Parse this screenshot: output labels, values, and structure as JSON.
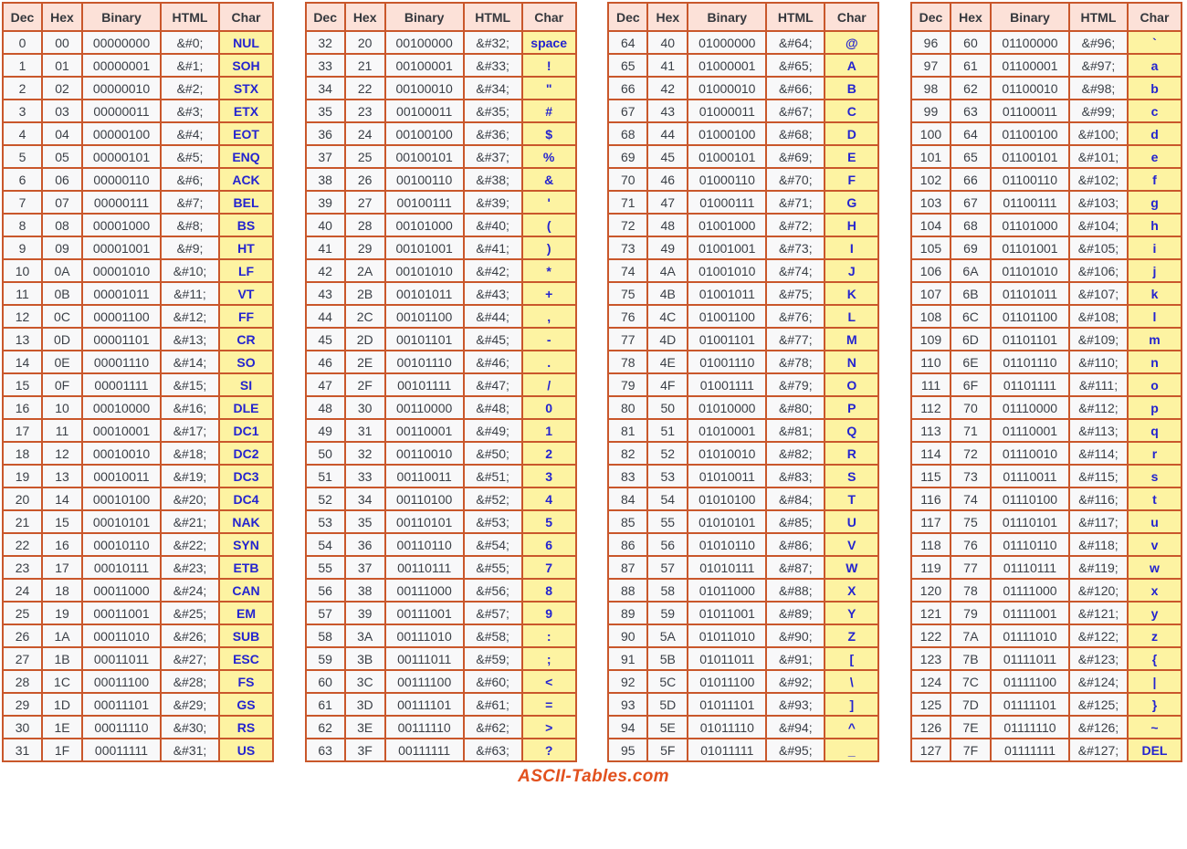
{
  "theme": {
    "border_color": "#c9572b",
    "header_bg": "#fce1d8",
    "cell_bg": "#f8f8f9",
    "char_bg": "#fdf3a2",
    "char_text": "#2424cf",
    "text_color": "#3a3f46",
    "footer_color": "#e2511e"
  },
  "footer": {
    "label": "ASCII-Tables.com"
  },
  "columns": [
    "Dec",
    "Hex",
    "Binary",
    "HTML",
    "Char"
  ],
  "tables": [
    {
      "rows": [
        [
          "0",
          "00",
          "00000000",
          "&#0;",
          "NUL"
        ],
        [
          "1",
          "01",
          "00000001",
          "&#1;",
          "SOH"
        ],
        [
          "2",
          "02",
          "00000010",
          "&#2;",
          "STX"
        ],
        [
          "3",
          "03",
          "00000011",
          "&#3;",
          "ETX"
        ],
        [
          "4",
          "04",
          "00000100",
          "&#4;",
          "EOT"
        ],
        [
          "5",
          "05",
          "00000101",
          "&#5;",
          "ENQ"
        ],
        [
          "6",
          "06",
          "00000110",
          "&#6;",
          "ACK"
        ],
        [
          "7",
          "07",
          "00000111",
          "&#7;",
          "BEL"
        ],
        [
          "8",
          "08",
          "00001000",
          "&#8;",
          "BS"
        ],
        [
          "9",
          "09",
          "00001001",
          "&#9;",
          "HT"
        ],
        [
          "10",
          "0A",
          "00001010",
          "&#10;",
          "LF"
        ],
        [
          "11",
          "0B",
          "00001011",
          "&#11;",
          "VT"
        ],
        [
          "12",
          "0C",
          "00001100",
          "&#12;",
          "FF"
        ],
        [
          "13",
          "0D",
          "00001101",
          "&#13;",
          "CR"
        ],
        [
          "14",
          "0E",
          "00001110",
          "&#14;",
          "SO"
        ],
        [
          "15",
          "0F",
          "00001111",
          "&#15;",
          "SI"
        ],
        [
          "16",
          "10",
          "00010000",
          "&#16;",
          "DLE"
        ],
        [
          "17",
          "11",
          "00010001",
          "&#17;",
          "DC1"
        ],
        [
          "18",
          "12",
          "00010010",
          "&#18;",
          "DC2"
        ],
        [
          "19",
          "13",
          "00010011",
          "&#19;",
          "DC3"
        ],
        [
          "20",
          "14",
          "00010100",
          "&#20;",
          "DC4"
        ],
        [
          "21",
          "15",
          "00010101",
          "&#21;",
          "NAK"
        ],
        [
          "22",
          "16",
          "00010110",
          "&#22;",
          "SYN"
        ],
        [
          "23",
          "17",
          "00010111",
          "&#23;",
          "ETB"
        ],
        [
          "24",
          "18",
          "00011000",
          "&#24;",
          "CAN"
        ],
        [
          "25",
          "19",
          "00011001",
          "&#25;",
          "EM"
        ],
        [
          "26",
          "1A",
          "00011010",
          "&#26;",
          "SUB"
        ],
        [
          "27",
          "1B",
          "00011011",
          "&#27;",
          "ESC"
        ],
        [
          "28",
          "1C",
          "00011100",
          "&#28;",
          "FS"
        ],
        [
          "29",
          "1D",
          "00011101",
          "&#29;",
          "GS"
        ],
        [
          "30",
          "1E",
          "00011110",
          "&#30;",
          "RS"
        ],
        [
          "31",
          "1F",
          "00011111",
          "&#31;",
          "US"
        ]
      ]
    },
    {
      "rows": [
        [
          "32",
          "20",
          "00100000",
          "&#32;",
          "space"
        ],
        [
          "33",
          "21",
          "00100001",
          "&#33;",
          "!"
        ],
        [
          "34",
          "22",
          "00100010",
          "&#34;",
          "\""
        ],
        [
          "35",
          "23",
          "00100011",
          "&#35;",
          "#"
        ],
        [
          "36",
          "24",
          "00100100",
          "&#36;",
          "$"
        ],
        [
          "37",
          "25",
          "00100101",
          "&#37;",
          "%"
        ],
        [
          "38",
          "26",
          "00100110",
          "&#38;",
          "&"
        ],
        [
          "39",
          "27",
          "00100111",
          "&#39;",
          "'"
        ],
        [
          "40",
          "28",
          "00101000",
          "&#40;",
          "("
        ],
        [
          "41",
          "29",
          "00101001",
          "&#41;",
          ")"
        ],
        [
          "42",
          "2A",
          "00101010",
          "&#42;",
          "*"
        ],
        [
          "43",
          "2B",
          "00101011",
          "&#43;",
          "+"
        ],
        [
          "44",
          "2C",
          "00101100",
          "&#44;",
          ","
        ],
        [
          "45",
          "2D",
          "00101101",
          "&#45;",
          "-"
        ],
        [
          "46",
          "2E",
          "00101110",
          "&#46;",
          "."
        ],
        [
          "47",
          "2F",
          "00101111",
          "&#47;",
          "/"
        ],
        [
          "48",
          "30",
          "00110000",
          "&#48;",
          "0"
        ],
        [
          "49",
          "31",
          "00110001",
          "&#49;",
          "1"
        ],
        [
          "50",
          "32",
          "00110010",
          "&#50;",
          "2"
        ],
        [
          "51",
          "33",
          "00110011",
          "&#51;",
          "3"
        ],
        [
          "52",
          "34",
          "00110100",
          "&#52;",
          "4"
        ],
        [
          "53",
          "35",
          "00110101",
          "&#53;",
          "5"
        ],
        [
          "54",
          "36",
          "00110110",
          "&#54;",
          "6"
        ],
        [
          "55",
          "37",
          "00110111",
          "&#55;",
          "7"
        ],
        [
          "56",
          "38",
          "00111000",
          "&#56;",
          "8"
        ],
        [
          "57",
          "39",
          "00111001",
          "&#57;",
          "9"
        ],
        [
          "58",
          "3A",
          "00111010",
          "&#58;",
          ":"
        ],
        [
          "59",
          "3B",
          "00111011",
          "&#59;",
          ";"
        ],
        [
          "60",
          "3C",
          "00111100",
          "&#60;",
          "<"
        ],
        [
          "61",
          "3D",
          "00111101",
          "&#61;",
          "="
        ],
        [
          "62",
          "3E",
          "00111110",
          "&#62;",
          ">"
        ],
        [
          "63",
          "3F",
          "00111111",
          "&#63;",
          "?"
        ]
      ]
    },
    {
      "rows": [
        [
          "64",
          "40",
          "01000000",
          "&#64;",
          "@"
        ],
        [
          "65",
          "41",
          "01000001",
          "&#65;",
          "A"
        ],
        [
          "66",
          "42",
          "01000010",
          "&#66;",
          "B"
        ],
        [
          "67",
          "43",
          "01000011",
          "&#67;",
          "C"
        ],
        [
          "68",
          "44",
          "01000100",
          "&#68;",
          "D"
        ],
        [
          "69",
          "45",
          "01000101",
          "&#69;",
          "E"
        ],
        [
          "70",
          "46",
          "01000110",
          "&#70;",
          "F"
        ],
        [
          "71",
          "47",
          "01000111",
          "&#71;",
          "G"
        ],
        [
          "72",
          "48",
          "01001000",
          "&#72;",
          "H"
        ],
        [
          "73",
          "49",
          "01001001",
          "&#73;",
          "I"
        ],
        [
          "74",
          "4A",
          "01001010",
          "&#74;",
          "J"
        ],
        [
          "75",
          "4B",
          "01001011",
          "&#75;",
          "K"
        ],
        [
          "76",
          "4C",
          "01001100",
          "&#76;",
          "L"
        ],
        [
          "77",
          "4D",
          "01001101",
          "&#77;",
          "M"
        ],
        [
          "78",
          "4E",
          "01001110",
          "&#78;",
          "N"
        ],
        [
          "79",
          "4F",
          "01001111",
          "&#79;",
          "O"
        ],
        [
          "80",
          "50",
          "01010000",
          "&#80;",
          "P"
        ],
        [
          "81",
          "51",
          "01010001",
          "&#81;",
          "Q"
        ],
        [
          "82",
          "52",
          "01010010",
          "&#82;",
          "R"
        ],
        [
          "83",
          "53",
          "01010011",
          "&#83;",
          "S"
        ],
        [
          "84",
          "54",
          "01010100",
          "&#84;",
          "T"
        ],
        [
          "85",
          "55",
          "01010101",
          "&#85;",
          "U"
        ],
        [
          "86",
          "56",
          "01010110",
          "&#86;",
          "V"
        ],
        [
          "87",
          "57",
          "01010111",
          "&#87;",
          "W"
        ],
        [
          "88",
          "58",
          "01011000",
          "&#88;",
          "X"
        ],
        [
          "89",
          "59",
          "01011001",
          "&#89;",
          "Y"
        ],
        [
          "90",
          "5A",
          "01011010",
          "&#90;",
          "Z"
        ],
        [
          "91",
          "5B",
          "01011011",
          "&#91;",
          "["
        ],
        [
          "92",
          "5C",
          "01011100",
          "&#92;",
          "\\"
        ],
        [
          "93",
          "5D",
          "01011101",
          "&#93;",
          "]"
        ],
        [
          "94",
          "5E",
          "01011110",
          "&#94;",
          "^"
        ],
        [
          "95",
          "5F",
          "01011111",
          "&#95;",
          "_"
        ]
      ]
    },
    {
      "rows": [
        [
          "96",
          "60",
          "01100000",
          "&#96;",
          "`"
        ],
        [
          "97",
          "61",
          "01100001",
          "&#97;",
          "a"
        ],
        [
          "98",
          "62",
          "01100010",
          "&#98;",
          "b"
        ],
        [
          "99",
          "63",
          "01100011",
          "&#99;",
          "c"
        ],
        [
          "100",
          "64",
          "01100100",
          "&#100;",
          "d"
        ],
        [
          "101",
          "65",
          "01100101",
          "&#101;",
          "e"
        ],
        [
          "102",
          "66",
          "01100110",
          "&#102;",
          "f"
        ],
        [
          "103",
          "67",
          "01100111",
          "&#103;",
          "g"
        ],
        [
          "104",
          "68",
          "01101000",
          "&#104;",
          "h"
        ],
        [
          "105",
          "69",
          "01101001",
          "&#105;",
          "i"
        ],
        [
          "106",
          "6A",
          "01101010",
          "&#106;",
          "j"
        ],
        [
          "107",
          "6B",
          "01101011",
          "&#107;",
          "k"
        ],
        [
          "108",
          "6C",
          "01101100",
          "&#108;",
          "l"
        ],
        [
          "109",
          "6D",
          "01101101",
          "&#109;",
          "m"
        ],
        [
          "110",
          "6E",
          "01101110",
          "&#110;",
          "n"
        ],
        [
          "111",
          "6F",
          "01101111",
          "&#111;",
          "o"
        ],
        [
          "112",
          "70",
          "01110000",
          "&#112;",
          "p"
        ],
        [
          "113",
          "71",
          "01110001",
          "&#113;",
          "q"
        ],
        [
          "114",
          "72",
          "01110010",
          "&#114;",
          "r"
        ],
        [
          "115",
          "73",
          "01110011",
          "&#115;",
          "s"
        ],
        [
          "116",
          "74",
          "01110100",
          "&#116;",
          "t"
        ],
        [
          "117",
          "75",
          "01110101",
          "&#117;",
          "u"
        ],
        [
          "118",
          "76",
          "01110110",
          "&#118;",
          "v"
        ],
        [
          "119",
          "77",
          "01110111",
          "&#119;",
          "w"
        ],
        [
          "120",
          "78",
          "01111000",
          "&#120;",
          "x"
        ],
        [
          "121",
          "79",
          "01111001",
          "&#121;",
          "y"
        ],
        [
          "122",
          "7A",
          "01111010",
          "&#122;",
          "z"
        ],
        [
          "123",
          "7B",
          "01111011",
          "&#123;",
          "{"
        ],
        [
          "124",
          "7C",
          "01111100",
          "&#124;",
          "|"
        ],
        [
          "125",
          "7D",
          "01111101",
          "&#125;",
          "}"
        ],
        [
          "126",
          "7E",
          "01111110",
          "&#126;",
          "~"
        ],
        [
          "127",
          "7F",
          "01111111",
          "&#127;",
          "DEL"
        ]
      ]
    }
  ]
}
